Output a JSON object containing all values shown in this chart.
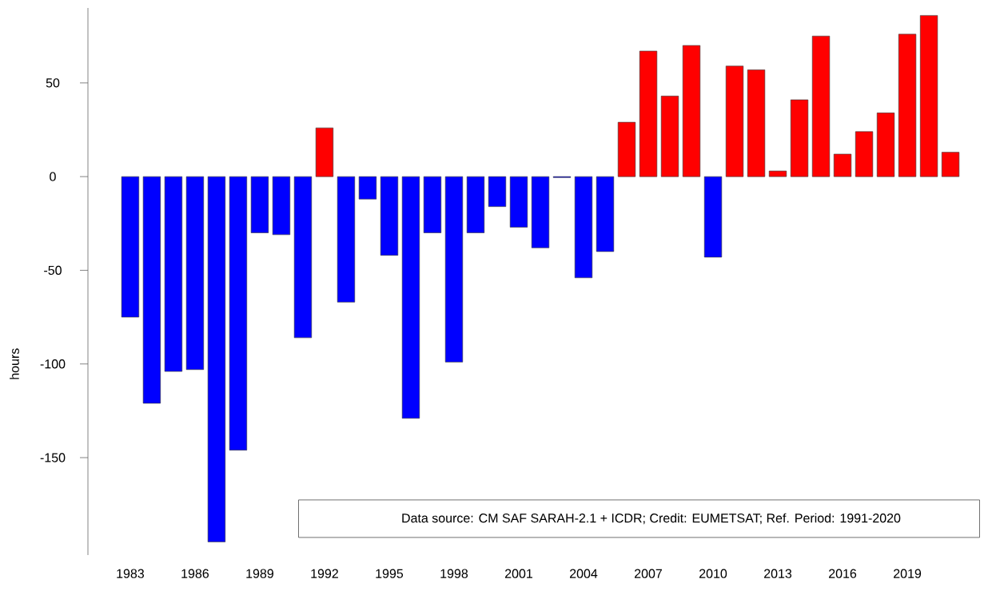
{
  "chart_data": {
    "type": "bar",
    "ylabel": "hours",
    "annotations": [
      "Data source: CM SAF SARAH-2.1 + ICDR;  Credit: EUMETSAT;  Ref. Period: 1991-2020"
    ],
    "categories": [
      "1983",
      null,
      null,
      "1986",
      null,
      null,
      "1989",
      null,
      null,
      "1992",
      null,
      null,
      "1995",
      null,
      null,
      "1998",
      null,
      null,
      "2001",
      null,
      null,
      "2004",
      null,
      null,
      "2007",
      null,
      null,
      "2010",
      null,
      null,
      "2013",
      null,
      null,
      "2016",
      null,
      null,
      "2019",
      null,
      null
    ],
    "values": [
      -75,
      -121,
      -104,
      -103,
      -195,
      -146,
      -30,
      -31,
      -86,
      26,
      -67,
      -12,
      -42,
      -129,
      -30,
      -99,
      -30,
      -16,
      -27,
      -38,
      -0.5,
      -54,
      -40,
      29,
      67,
      43,
      70,
      -43,
      59,
      57,
      3,
      41,
      75,
      12,
      24,
      34,
      76,
      86,
      13
    ],
    "colors": [
      "#0000ff",
      "#0000ff",
      "#0000ff",
      "#0000ff",
      "#0000ff",
      "#0000ff",
      "#0000ff",
      "#0000ff",
      "#0000ff",
      "#ff0000",
      "#0000ff",
      "#0000ff",
      "#0000ff",
      "#0000ff",
      "#0000ff",
      "#0000ff",
      "#0000ff",
      "#0000ff",
      "#0000ff",
      "#0000ff",
      "#0000ff",
      "#0000ff",
      "#0000ff",
      "#ff0000",
      "#ff0000",
      "#ff0000",
      "#ff0000",
      "#0000ff",
      "#ff0000",
      "#ff0000",
      "#ff0000",
      "#ff0000",
      "#ff0000",
      "#ff0000",
      "#ff0000",
      "#ff0000",
      "#ff0000",
      "#ff0000",
      "#ff0000"
    ],
    "ylim": [
      -202,
      90
    ],
    "yticks": [
      {
        "value": -150,
        "label": "-150"
      },
      {
        "value": -100,
        "label": "-100"
      },
      {
        "value": -50,
        "label": "-50"
      },
      {
        "value": 0,
        "label": "0"
      },
      {
        "value": 50,
        "label": "50"
      }
    ]
  }
}
